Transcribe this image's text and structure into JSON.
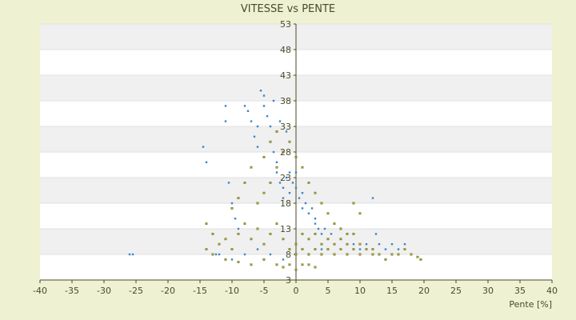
{
  "chart_data": {
    "type": "scatter",
    "title": "VITESSE vs PENTE",
    "xlabel": "Pente [%]",
    "ylabel": "",
    "xlim": [
      -40,
      40
    ],
    "ylim": [
      3,
      53
    ],
    "x_ticks": [
      "-40",
      "-35",
      "-30",
      "-25",
      "-20",
      "-15",
      "-10",
      "-5",
      "0",
      "5",
      "10",
      "15",
      "20",
      "25",
      "30",
      "35",
      "40"
    ],
    "y_ticks": [
      "3",
      "8",
      "13",
      "18",
      "23",
      "28",
      "33",
      "38",
      "43",
      "48",
      "53"
    ],
    "grid": "horizontal alternating bands",
    "legend": "none",
    "series": [
      {
        "color": "#3a86c8",
        "points": [
          [
            -26,
            8
          ],
          [
            -25.5,
            8
          ],
          [
            -14.5,
            29
          ],
          [
            -14,
            26
          ],
          [
            -11,
            37
          ],
          [
            -11,
            34
          ],
          [
            -10.5,
            22
          ],
          [
            -10,
            18
          ],
          [
            -9.5,
            15
          ],
          [
            -9,
            13
          ],
          [
            -8,
            37
          ],
          [
            -7.5,
            36
          ],
          [
            -7,
            34
          ],
          [
            -6.5,
            31
          ],
          [
            -6,
            29
          ],
          [
            -5.5,
            40
          ],
          [
            -5,
            39
          ],
          [
            -5,
            37
          ],
          [
            -4.5,
            35
          ],
          [
            -4,
            33
          ],
          [
            -4,
            30
          ],
          [
            -3.5,
            28
          ],
          [
            -3,
            26
          ],
          [
            -3,
            24
          ],
          [
            -2.5,
            22
          ],
          [
            -2,
            21
          ],
          [
            -2,
            19
          ],
          [
            -1.5,
            23
          ],
          [
            -1,
            24
          ],
          [
            -1,
            20
          ],
          [
            -0.5,
            22
          ],
          [
            0,
            24
          ],
          [
            0,
            21
          ],
          [
            0.5,
            19
          ],
          [
            1,
            20
          ],
          [
            1,
            17
          ],
          [
            1.5,
            18
          ],
          [
            2,
            16
          ],
          [
            2.5,
            17
          ],
          [
            3,
            15
          ],
          [
            3,
            14
          ],
          [
            3.5,
            13
          ],
          [
            4,
            12
          ],
          [
            4.5,
            13
          ],
          [
            5,
            11
          ],
          [
            5.5,
            12
          ],
          [
            6,
            10
          ],
          [
            7,
            11
          ],
          [
            8,
            10
          ],
          [
            9,
            10
          ],
          [
            10,
            9
          ],
          [
            11,
            10
          ],
          [
            12,
            19
          ],
          [
            12.5,
            12
          ],
          [
            13,
            10
          ],
          [
            14,
            9
          ],
          [
            15,
            10
          ],
          [
            16,
            9
          ],
          [
            17,
            10
          ],
          [
            -12,
            8
          ],
          [
            -12.5,
            8
          ],
          [
            -10,
            7
          ],
          [
            -8,
            8
          ],
          [
            -6,
            9
          ],
          [
            -4,
            8
          ],
          [
            -2,
            7
          ],
          [
            2,
            8
          ],
          [
            4,
            9
          ],
          [
            6,
            8
          ],
          [
            -1.5,
            32
          ],
          [
            -2.5,
            34
          ],
          [
            -3.5,
            38
          ],
          [
            -6,
            33
          ]
        ]
      },
      {
        "color": "#a8a820",
        "points": [
          [
            -14,
            14
          ],
          [
            -13,
            12
          ],
          [
            -12,
            10
          ],
          [
            -11,
            11
          ],
          [
            -10,
            9
          ],
          [
            -9,
            12
          ],
          [
            -8,
            14
          ],
          [
            -7,
            11
          ],
          [
            -6,
            13
          ],
          [
            -5,
            10
          ],
          [
            -4,
            12
          ],
          [
            -3,
            14
          ],
          [
            -2,
            11
          ],
          [
            -1,
            9
          ],
          [
            0,
            8
          ],
          [
            0,
            10
          ],
          [
            1,
            9
          ],
          [
            1,
            12
          ],
          [
            2,
            8
          ],
          [
            2,
            11
          ],
          [
            3,
            9
          ],
          [
            3,
            12
          ],
          [
            4,
            8
          ],
          [
            4,
            10
          ],
          [
            5,
            9
          ],
          [
            5,
            11
          ],
          [
            6,
            8
          ],
          [
            6,
            10
          ],
          [
            7,
            9
          ],
          [
            7,
            11
          ],
          [
            8,
            8
          ],
          [
            8,
            10
          ],
          [
            9,
            9
          ],
          [
            9,
            12
          ],
          [
            10,
            8
          ],
          [
            10,
            10
          ],
          [
            11,
            9
          ],
          [
            12,
            8
          ],
          [
            12,
            9
          ],
          [
            13,
            8
          ],
          [
            14,
            7
          ],
          [
            15,
            8
          ],
          [
            16,
            8
          ],
          [
            17,
            9
          ],
          [
            18,
            8
          ],
          [
            19,
            7.5
          ],
          [
            19.5,
            7
          ],
          [
            -1,
            6
          ],
          [
            0,
            5
          ],
          [
            1,
            6
          ],
          [
            2,
            6
          ],
          [
            3,
            5.5
          ],
          [
            -2,
            5.5
          ],
          [
            -3,
            6
          ],
          [
            -5,
            7
          ],
          [
            -7,
            6
          ],
          [
            -9,
            6.5
          ],
          [
            -11,
            7
          ],
          [
            -13,
            8
          ],
          [
            -14,
            9
          ],
          [
            -6,
            18
          ],
          [
            -5,
            20
          ],
          [
            -4,
            22
          ],
          [
            -3,
            25
          ],
          [
            -2,
            28
          ],
          [
            -1,
            30
          ],
          [
            -7,
            25
          ],
          [
            -8,
            22
          ],
          [
            -9,
            19
          ],
          [
            -10,
            17
          ],
          [
            -4,
            30
          ],
          [
            -3,
            32
          ],
          [
            -5,
            27
          ],
          [
            0,
            27
          ],
          [
            1,
            25
          ],
          [
            2,
            22
          ],
          [
            3,
            20
          ],
          [
            4,
            18
          ],
          [
            5,
            16
          ],
          [
            6,
            14
          ],
          [
            7,
            13
          ],
          [
            8,
            12
          ],
          [
            9,
            18
          ],
          [
            10,
            16
          ]
        ]
      }
    ]
  }
}
